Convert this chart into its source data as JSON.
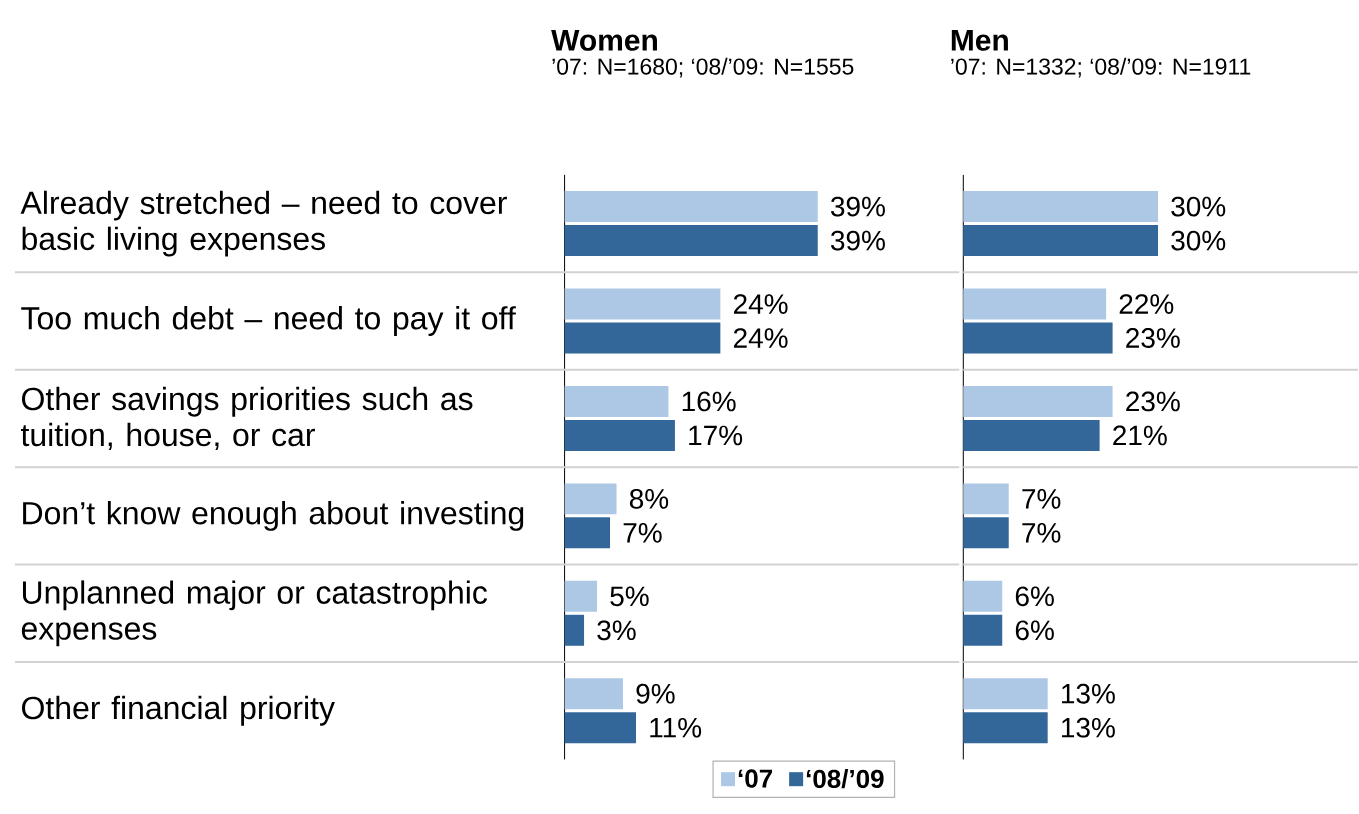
{
  "chart_data": [
    {
      "type": "bar",
      "orientation": "horizontal",
      "title": "Women",
      "subtitle": "’07: N=1680; ‘08/’09: N=1555",
      "categories": [
        "Already stretched – need to cover basic living expenses",
        "Too much debt – need to pay it off",
        "Other savings priorities such as tuition, house, or car",
        "Don’t know enough about investing",
        "Unplanned major or catastrophic expenses",
        "Other financial priority"
      ],
      "series": [
        {
          "name": "‘07",
          "color": "#adc8e4",
          "values": [
            39,
            24,
            16,
            8,
            5,
            9
          ],
          "value_labels": [
            "39%",
            "24%",
            "16%",
            "8%",
            "5%",
            "9%"
          ]
        },
        {
          "name": "‘08/’09",
          "color": "#336799",
          "values": [
            39,
            24,
            17,
            7,
            3,
            11
          ],
          "value_labels": [
            "39%",
            "24%",
            "17%",
            "7%",
            "3%",
            "11%"
          ]
        }
      ],
      "grid": "y",
      "legend": "bottom",
      "tick_labels": "y"
    },
    {
      "type": "bar",
      "orientation": "horizontal",
      "title": "Men",
      "subtitle": "’07: N=1332; ‘08/’09: N=1911",
      "categories": [
        null,
        null,
        null,
        null,
        null,
        null
      ],
      "series": [
        {
          "color": "#adc8e4",
          "values": [
            30,
            22,
            23,
            7,
            6,
            13
          ],
          "value_labels": [
            "30%",
            "22%",
            "23%",
            "7%",
            "6%",
            "13%"
          ]
        },
        {
          "color": "#336799",
          "values": [
            30,
            23,
            21,
            7,
            6,
            13
          ],
          "value_labels": [
            "30%",
            "23%",
            "21%",
            "7%",
            "6%",
            "13%"
          ]
        }
      ],
      "grid": "y",
      "tick_labels": false
    }
  ]
}
